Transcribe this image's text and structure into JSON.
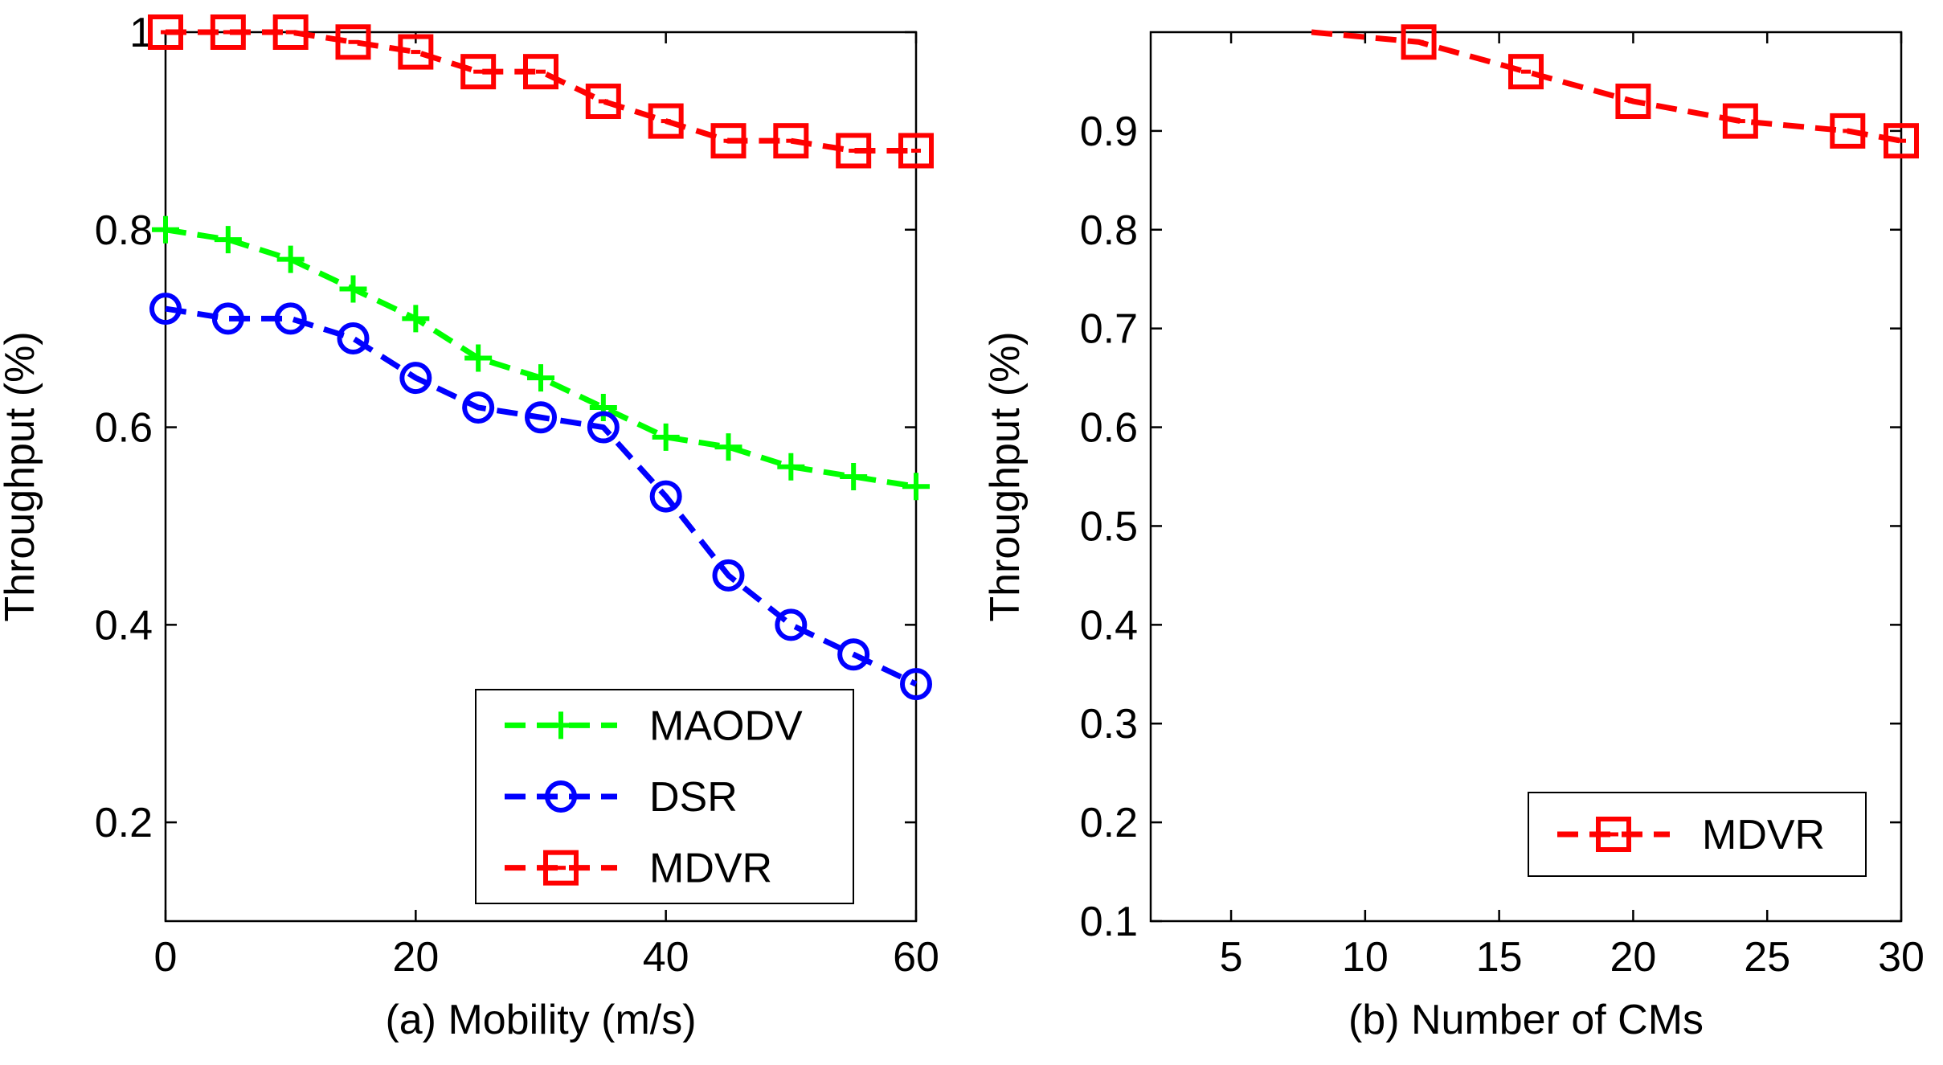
{
  "chart_data": [
    {
      "id": "a",
      "type": "line",
      "xlabel": "(a) Mobility (m/s)",
      "ylabel": "Throughput (%)",
      "xlim": [
        0,
        60
      ],
      "ylim": [
        0.1,
        1.0
      ],
      "xticks": [
        0,
        20,
        40,
        60
      ],
      "yticks": [
        0.2,
        0.4,
        0.6,
        0.8,
        1.0
      ],
      "ytick_labels": [
        "0.2",
        "0.4",
        "0.6",
        "0.8",
        "1"
      ],
      "grid": false,
      "legend_position": "bottom-right",
      "x": [
        0,
        5,
        10,
        15,
        20,
        25,
        30,
        35,
        40,
        45,
        50,
        55,
        60
      ],
      "series": [
        {
          "name": "MAODV",
          "color": "#00ff00",
          "marker": "plus",
          "values": [
            0.8,
            0.79,
            0.77,
            0.74,
            0.71,
            0.67,
            0.65,
            0.62,
            0.59,
            0.58,
            0.56,
            0.55,
            0.54
          ]
        },
        {
          "name": "DSR",
          "color": "#0000ff",
          "marker": "circle",
          "values": [
            0.72,
            0.71,
            0.71,
            0.69,
            0.65,
            0.62,
            0.61,
            0.6,
            0.53,
            0.45,
            0.4,
            0.37,
            0.34
          ]
        },
        {
          "name": "MDVR",
          "color": "#ff0000",
          "marker": "square",
          "values": [
            1.0,
            1.0,
            1.0,
            0.99,
            0.98,
            0.96,
            0.96,
            0.93,
            0.91,
            0.89,
            0.89,
            0.88,
            0.88
          ]
        }
      ]
    },
    {
      "id": "b",
      "type": "line",
      "xlabel": "(b) Number of CMs",
      "ylabel": "Throughput (%)",
      "xlim": [
        2,
        30
      ],
      "ylim": [
        0.1,
        1.0
      ],
      "xticks": [
        5,
        10,
        15,
        20,
        25,
        30
      ],
      "yticks": [
        0.1,
        0.2,
        0.3,
        0.4,
        0.5,
        0.6,
        0.7,
        0.8,
        0.9
      ],
      "ytick_labels": [
        "0.1",
        "0.2",
        "0.3",
        "0.4",
        "0.5",
        "0.6",
        "0.7",
        "0.8",
        "0.9"
      ],
      "grid": false,
      "legend_position": "bottom-right",
      "x": [
        8,
        12,
        16,
        20,
        24,
        28,
        30
      ],
      "series": [
        {
          "name": "MDVR",
          "color": "#ff0000",
          "marker": "square",
          "values": [
            1.0,
            0.99,
            0.96,
            0.93,
            0.91,
            0.9,
            0.89
          ],
          "marker_from_index": 1
        }
      ]
    }
  ]
}
